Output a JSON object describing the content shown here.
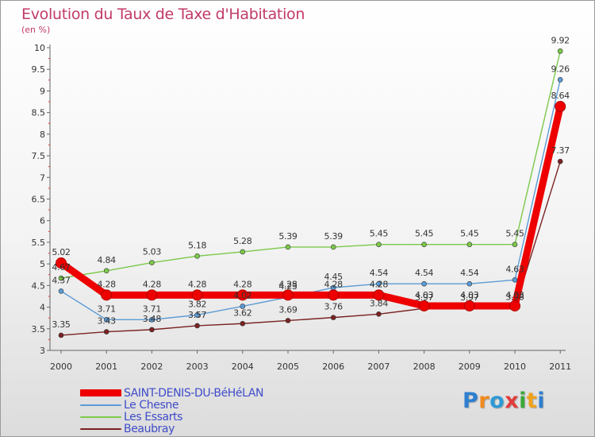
{
  "header": {
    "title": "Evolution du Taux de Taxe d'Habitation",
    "unit": "(en %)"
  },
  "logo": {
    "text": "Proxiti"
  },
  "chart_data": {
    "type": "line",
    "title": "Evolution du Taux de Taxe d'Habitation",
    "ylabel": "(en %)",
    "xlabel": "",
    "ylim": [
      3,
      10
    ],
    "y_ticks": [
      "3",
      "3.5",
      "4",
      "4.5",
      "5",
      "5.5",
      "6",
      "6.5",
      "7",
      "7.5",
      "8",
      "8.5",
      "9",
      "9.5",
      "10"
    ],
    "grid": false,
    "legend_position": "bottom-left",
    "x": [
      "2000",
      "2001",
      "2002",
      "2003",
      "2004",
      "2005",
      "2006",
      "2007",
      "2008",
      "2009",
      "2010",
      "2011"
    ],
    "series": [
      {
        "name": "SAINT-DENIS-DU-BéHéLAN",
        "color": "#ee0000",
        "values": [
          5.02,
          4.28,
          4.28,
          4.28,
          4.28,
          4.28,
          4.28,
          4.28,
          4.03,
          4.03,
          4.03,
          8.64
        ],
        "labels": [
          "5.02",
          "4.28",
          "4.28",
          "4.28",
          "4.28",
          "4.28",
          "4.28",
          "4.28",
          "4.03",
          "4.03",
          "4.03",
          "8.64"
        ]
      },
      {
        "name": "Le Chesne",
        "color": "#5b9bd5",
        "values": [
          4.37,
          3.71,
          3.71,
          3.82,
          4.02,
          4.23,
          4.45,
          4.54,
          4.54,
          4.54,
          4.63,
          9.26
        ],
        "labels": [
          "4.37",
          "3.71",
          "3.71",
          "3.82",
          "4.02",
          "4.23",
          "4.45",
          "4.54",
          "4.54",
          "4.54",
          "4.63",
          "9.26"
        ]
      },
      {
        "name": "Les Essarts",
        "color": "#7cc94a",
        "values": [
          4.67,
          4.84,
          5.03,
          5.18,
          5.28,
          5.39,
          5.39,
          5.45,
          5.45,
          5.45,
          5.45,
          9.92
        ],
        "labels": [
          "4.67",
          "4.84",
          "5.03",
          "5.18",
          "5.28",
          "5.39",
          "5.39",
          "5.45",
          "5.45",
          "5.45",
          "5.45",
          "9.92"
        ]
      },
      {
        "name": "Beaubray",
        "color": "#7a2323",
        "values": [
          3.35,
          3.43,
          3.48,
          3.57,
          3.62,
          3.69,
          3.76,
          3.84,
          3.97,
          3.97,
          3.98,
          7.37
        ],
        "labels": [
          "3.35",
          "3.43",
          "3.48",
          "3.57",
          "3.62",
          "3.69",
          "3.76",
          "3.84",
          "3.97",
          "3.97",
          "3.98",
          "7.37"
        ]
      }
    ]
  }
}
